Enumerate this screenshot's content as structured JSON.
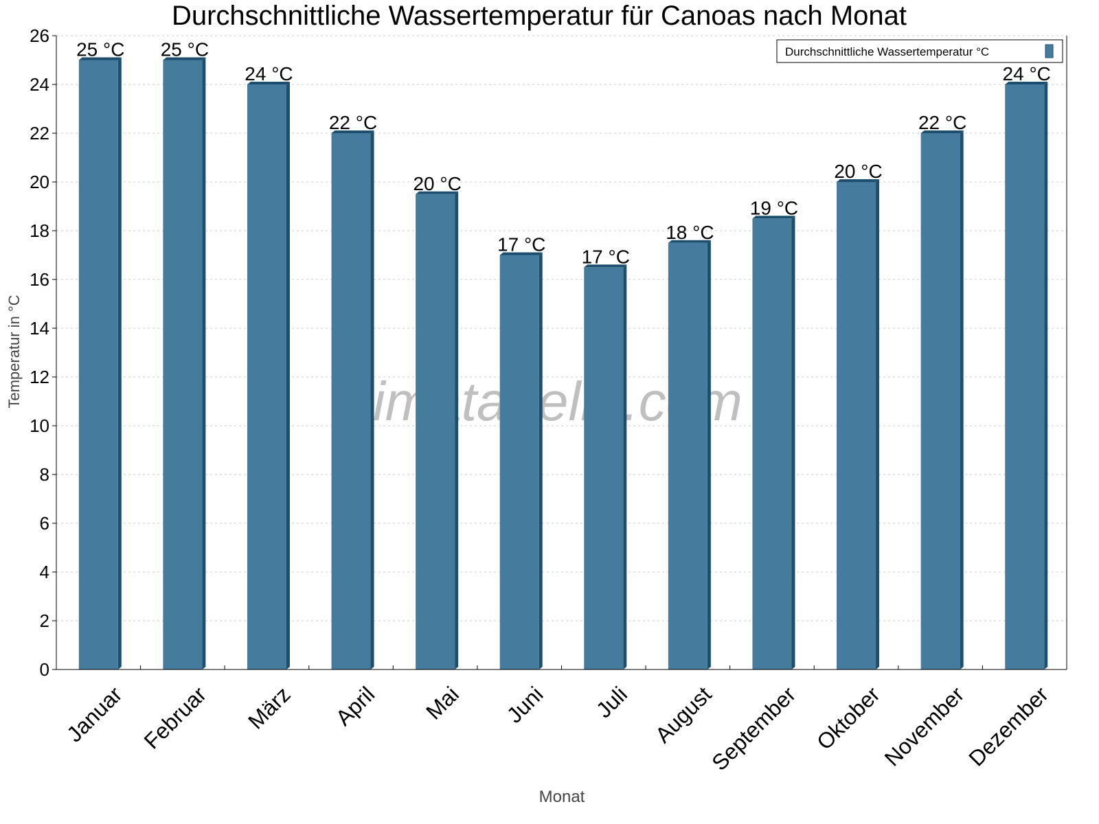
{
  "chart_data": {
    "type": "bar",
    "title": "Durchschnittliche Wassertemperatur für Canoas nach Monat",
    "xlabel": "Monat",
    "ylabel": "Temperatur in °C",
    "categories": [
      "Januar",
      "Februar",
      "März",
      "April",
      "Mai",
      "Juni",
      "Juli",
      "August",
      "September",
      "Oktober",
      "November",
      "Dezember"
    ],
    "series": [
      {
        "name": "Durchschnittliche Wassertemperatur °C",
        "values": [
          25,
          25,
          24,
          22,
          19.5,
          17,
          16.5,
          17.5,
          18.5,
          20,
          22,
          24
        ],
        "labels": [
          "25 °C",
          "25 °C",
          "24 °C",
          "22 °C",
          "20 °C",
          "17 °C",
          "17 °C",
          "18 °C",
          "19 °C",
          "20 °C",
          "22 °C",
          "24 °C"
        ]
      }
    ],
    "ylim": [
      0,
      26
    ],
    "yticks": [
      0,
      2,
      4,
      6,
      8,
      10,
      12,
      14,
      16,
      18,
      20,
      22,
      24,
      26
    ],
    "grid": true,
    "legend_position": "top-right",
    "colors": {
      "bar": "#457b9d",
      "bar_side": "#1d4e6e",
      "grid": "#c8c8c8"
    },
    "watermark": "klimatabelle.com"
  }
}
